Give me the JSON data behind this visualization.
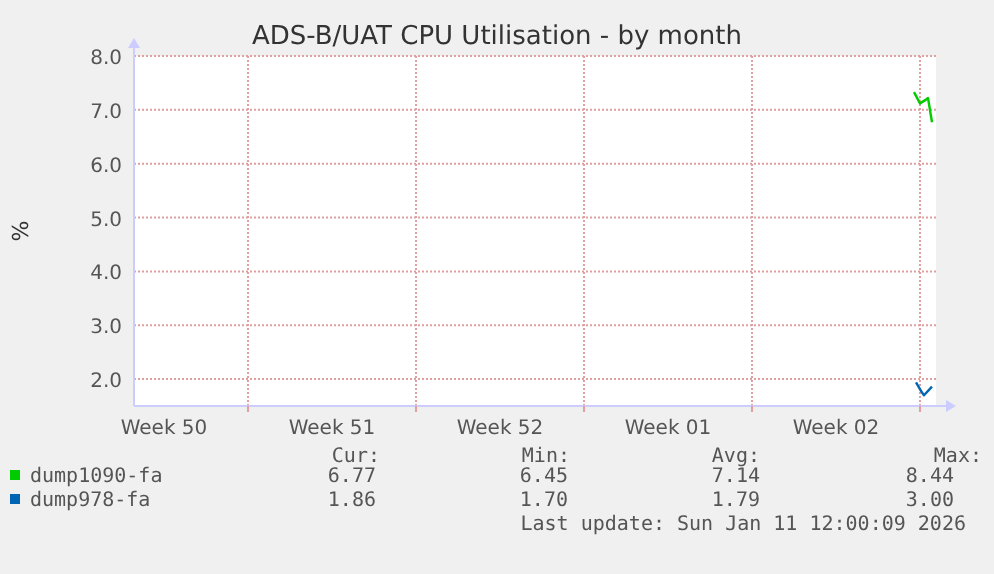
{
  "chart_data": {
    "type": "line",
    "title": "ADS-B/UAT CPU Utilisation - by month",
    "ylabel": "%",
    "xlim": [
      "2025-12-09T06:00",
      "2026-01-11T16:00"
    ],
    "xticks": [
      {
        "value": "2025-12-10T12:00",
        "label": "Week 50"
      },
      {
        "value": "2025-12-17T12:00",
        "label": "Week 51"
      },
      {
        "value": "2025-12-24T12:00",
        "label": "Week 52"
      },
      {
        "value": "2025-12-31T12:00",
        "label": "Week 01"
      },
      {
        "value": "2026-01-07T12:00",
        "label": "Week 02"
      },
      {
        "value": "2025-12-14",
        "label": null
      },
      {
        "value": "2025-12-21",
        "label": null
      },
      {
        "value": "2025-12-28",
        "label": null
      },
      {
        "value": "2026-01-04",
        "label": null
      },
      {
        "value": "2026-01-11",
        "label": null
      }
    ],
    "ylim": [
      1.5,
      8.0
    ],
    "yticks": [
      {
        "value": 2,
        "label": "2.0"
      },
      {
        "value": 3,
        "label": "3.0"
      },
      {
        "value": 4,
        "label": "4.0"
      },
      {
        "value": 5,
        "label": "5.0"
      },
      {
        "value": 6,
        "label": "6.0"
      },
      {
        "value": 7,
        "label": "7.0"
      },
      {
        "value": 8,
        "label": "8.0"
      }
    ],
    "grid": true,
    "legend": "bottom",
    "line_style": "solid",
    "series": [
      {
        "name": "dump1090-fa",
        "color": "#00cc00",
        "x": [
          "2026-01-10T18:00",
          "2026-01-11T00:00",
          "2026-01-11T06:00",
          "2026-01-11T08:00",
          "2026-01-11T12:00"
        ],
        "values": [
          7.33,
          7.12,
          7.19,
          7.22,
          6.77
        ]
      },
      {
        "name": "dump978-fa",
        "color": "#0066b3",
        "x": [
          "2026-01-10T20:00",
          "2026-01-11T02:00",
          "2026-01-11T04:00",
          "2026-01-11T12:00"
        ],
        "values": [
          1.94,
          1.75,
          1.7,
          1.86
        ]
      }
    ],
    "annotations": [
      "Cur:",
      "Min:",
      "Avg:",
      "Max:",
      "6.77",
      "6.45",
      "7.14",
      "8.44",
      "1.86",
      "1.70",
      "1.79",
      "3.00",
      "Last update: Sun Jan 11 12:00:09 2026"
    ]
  }
}
